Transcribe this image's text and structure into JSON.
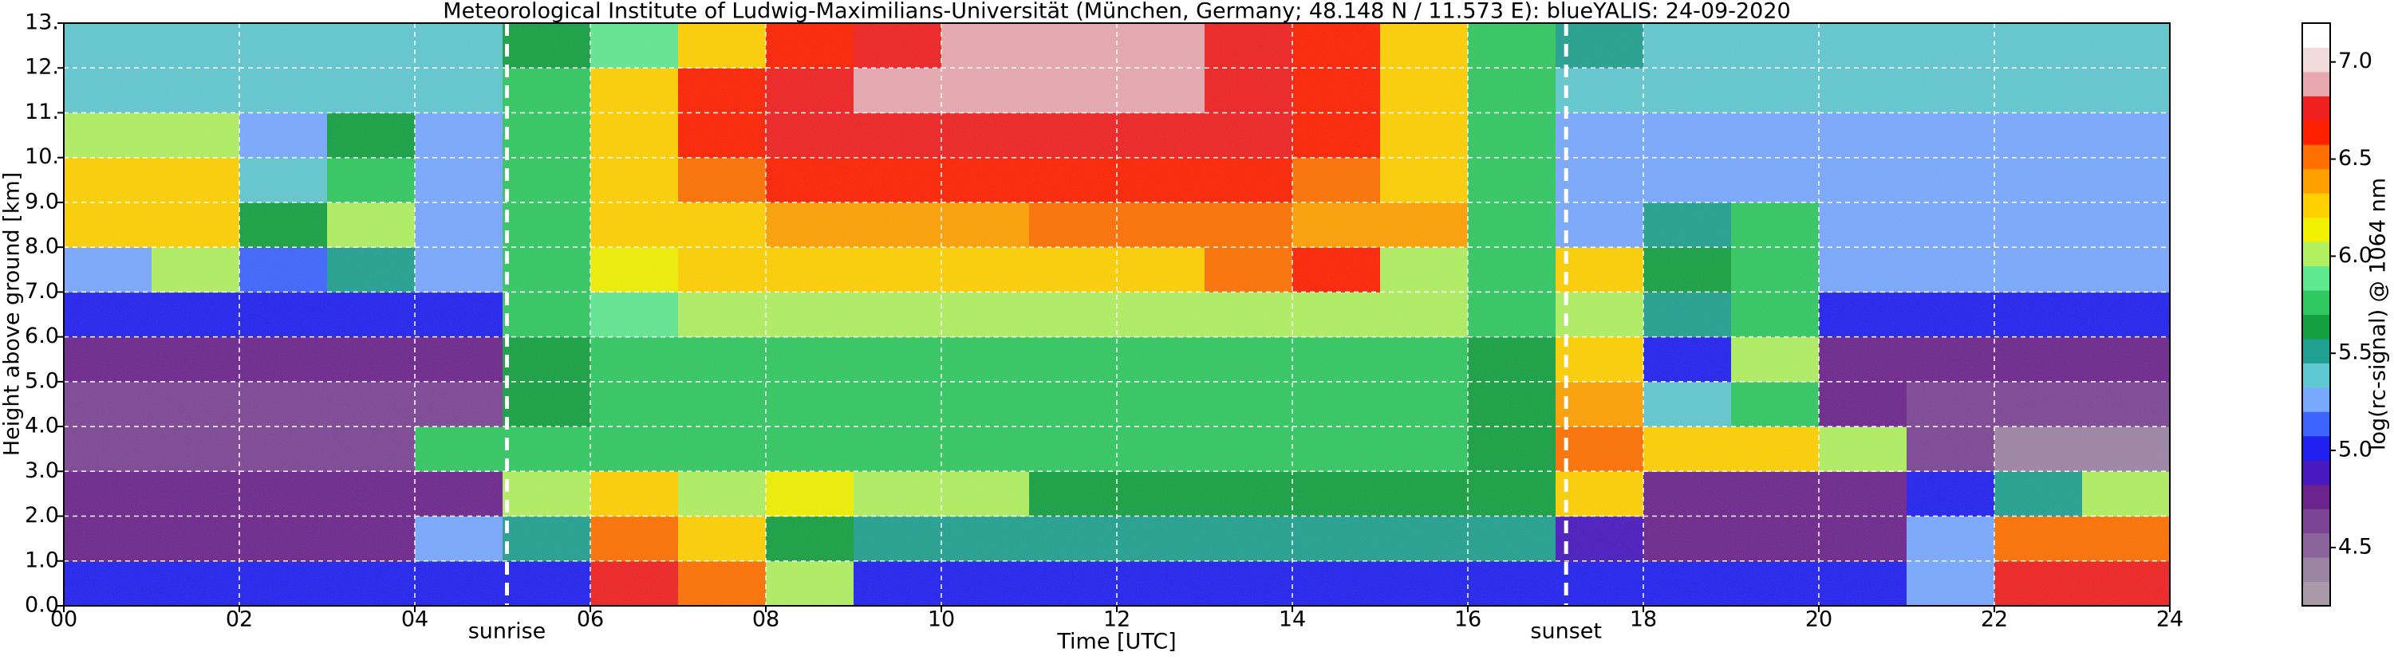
{
  "chart_data": {
    "type": "heatmap",
    "title": "Meteorological Institute of Ludwig-Maximilians-Universität (München, Germany; 48.148 N / 11.573 E):    blueYALIS: 24-09-2020",
    "xlabel": "Time [UTC]",
    "ylabel": "Height above ground [km]",
    "xlim": [
      0,
      24
    ],
    "ylim": [
      0,
      13
    ],
    "xticks": [
      {
        "value": 0,
        "label": "00"
      },
      {
        "value": 2,
        "label": "02"
      },
      {
        "value": 4,
        "label": "04"
      },
      {
        "value": 6,
        "label": "06"
      },
      {
        "value": 8,
        "label": "08"
      },
      {
        "value": 10,
        "label": "10"
      },
      {
        "value": 12,
        "label": "12"
      },
      {
        "value": 14,
        "label": "14"
      },
      {
        "value": 16,
        "label": "16"
      },
      {
        "value": 18,
        "label": "18"
      },
      {
        "value": 20,
        "label": "20"
      },
      {
        "value": 22,
        "label": "22"
      },
      {
        "value": 24,
        "label": "24"
      }
    ],
    "yticks": [
      {
        "value": 0,
        "label": "0.0"
      },
      {
        "value": 1,
        "label": "1.0"
      },
      {
        "value": 2,
        "label": "2.0"
      },
      {
        "value": 3,
        "label": "3.0"
      },
      {
        "value": 4,
        "label": "4.0"
      },
      {
        "value": 5,
        "label": "5.0"
      },
      {
        "value": 6,
        "label": "6.0"
      },
      {
        "value": 7,
        "label": "7.0"
      },
      {
        "value": 8,
        "label": "8.0"
      },
      {
        "value": 9,
        "label": "9.0"
      },
      {
        "value": 10,
        "label": "10."
      },
      {
        "value": 11,
        "label": "11."
      },
      {
        "value": 12,
        "label": "12."
      },
      {
        "value": 13,
        "label": "13."
      }
    ],
    "grid": true,
    "values": [
      [
        5.0,
        5.0,
        5.0,
        5.0,
        5.0,
        5.0,
        6.8,
        6.5,
        6.0,
        5.0,
        5.0,
        5.0,
        5.0,
        5.0,
        5.0,
        5.0,
        5.0,
        5.0,
        5.0,
        5.0,
        5.0,
        5.2,
        6.8,
        6.8
      ],
      [
        4.8,
        4.8,
        4.8,
        4.8,
        5.3,
        5.5,
        6.5,
        6.3,
        5.6,
        5.5,
        5.5,
        5.5,
        5.5,
        5.5,
        5.5,
        5.5,
        5.5,
        4.9,
        4.8,
        4.8,
        4.8,
        5.2,
        6.5,
        6.5
      ],
      [
        4.7,
        4.7,
        4.7,
        4.7,
        4.8,
        6.0,
        6.2,
        6.0,
        6.1,
        6.0,
        6.0,
        5.6,
        5.6,
        5.6,
        5.6,
        5.6,
        5.6,
        6.2,
        4.8,
        4.8,
        4.8,
        5.0,
        5.5,
        6.0
      ],
      [
        4.6,
        4.6,
        4.6,
        4.6,
        5.8,
        5.7,
        5.7,
        5.7,
        5.8,
        5.7,
        5.7,
        5.7,
        5.7,
        5.7,
        5.7,
        5.7,
        5.6,
        6.5,
        6.3,
        6.2,
        6.0,
        4.6,
        4.4,
        4.4
      ],
      [
        4.6,
        4.6,
        4.6,
        4.6,
        4.6,
        5.6,
        5.8,
        5.8,
        5.8,
        5.8,
        5.8,
        5.8,
        5.8,
        5.8,
        5.8,
        5.8,
        5.6,
        6.4,
        5.4,
        5.8,
        4.7,
        4.6,
        4.6,
        4.6
      ],
      [
        4.8,
        4.8,
        4.8,
        4.8,
        4.8,
        5.6,
        5.8,
        5.8,
        5.8,
        5.8,
        5.8,
        5.8,
        5.8,
        5.8,
        5.8,
        5.8,
        5.6,
        6.3,
        5.0,
        6.0,
        4.8,
        4.8,
        4.8,
        4.8
      ],
      [
        5.0,
        5.0,
        5.0,
        5.0,
        5.0,
        5.7,
        5.9,
        6.0,
        6.0,
        6.0,
        6.0,
        6.0,
        6.0,
        6.0,
        6.0,
        6.0,
        5.7,
        6.0,
        5.5,
        5.7,
        5.0,
        5.0,
        5.0,
        5.0
      ],
      [
        5.2,
        6.0,
        5.1,
        5.5,
        5.2,
        5.8,
        6.1,
        6.2,
        6.2,
        6.2,
        6.2,
        6.3,
        6.3,
        6.5,
        6.6,
        6.0,
        5.8,
        6.2,
        5.6,
        5.8,
        5.2,
        5.2,
        5.2,
        5.2
      ],
      [
        6.2,
        6.3,
        5.6,
        6.0,
        5.3,
        5.8,
        6.2,
        6.3,
        6.4,
        6.4,
        6.4,
        6.5,
        6.5,
        6.5,
        6.4,
        6.4,
        5.8,
        5.3,
        5.5,
        5.8,
        5.3,
        5.3,
        5.3,
        5.3
      ],
      [
        6.3,
        6.2,
        5.4,
        5.8,
        5.3,
        5.8,
        6.3,
        6.5,
        6.6,
        6.6,
        6.6,
        6.6,
        6.6,
        6.6,
        6.5,
        6.3,
        5.8,
        5.3,
        5.3,
        5.3,
        5.3,
        5.3,
        5.3,
        5.3
      ],
      [
        6.0,
        6.0,
        5.3,
        5.6,
        5.3,
        5.8,
        6.3,
        6.6,
        6.7,
        6.8,
        6.8,
        6.8,
        6.8,
        6.7,
        6.6,
        6.3,
        5.8,
        5.3,
        5.3,
        5.3,
        5.3,
        5.3,
        5.3,
        5.3
      ],
      [
        5.4,
        5.4,
        5.4,
        5.4,
        5.4,
        5.8,
        6.2,
        6.6,
        6.8,
        6.9,
        6.9,
        6.9,
        6.9,
        6.8,
        6.6,
        6.2,
        5.8,
        5.4,
        5.4,
        5.4,
        5.4,
        5.4,
        5.4,
        5.4
      ],
      [
        5.4,
        5.4,
        5.4,
        5.4,
        5.4,
        5.6,
        5.9,
        6.3,
        6.6,
        6.8,
        6.9,
        6.9,
        6.9,
        6.8,
        6.6,
        6.2,
        5.8,
        5.5,
        5.4,
        5.4,
        5.4,
        5.4,
        5.4,
        5.4
      ]
    ],
    "annotations": [
      {
        "text": "sunrise",
        "x": 5.05
      },
      {
        "text": "sunset",
        "x": 17.12
      }
    ],
    "colorbar": {
      "label": "log(rc-signal) @ 1064 nm",
      "lim": [
        4.2,
        7.2
      ],
      "ticks": [
        {
          "value": 4.5,
          "label": "4.5"
        },
        {
          "value": 5.0,
          "label": "5.0"
        },
        {
          "value": 5.5,
          "label": "5.5"
        },
        {
          "value": 6.0,
          "label": "6.0"
        },
        {
          "value": 6.5,
          "label": "6.5"
        },
        {
          "value": 7.0,
          "label": "7.0"
        }
      ],
      "colors": [
        "#a89aa8",
        "#9c84a4",
        "#8c649c",
        "#7c4494",
        "#6c248c",
        "#4818c0",
        "#2020f0",
        "#3c64ff",
        "#78a8ff",
        "#60c8d0",
        "#20a090",
        "#14a040",
        "#30c860",
        "#60e890",
        "#b0f060",
        "#f0f000",
        "#ffd000",
        "#ffa000",
        "#ff7000",
        "#ff2000",
        "#f02020",
        "#e8a8b0",
        "#f0dada",
        "#ffffff"
      ]
    }
  }
}
